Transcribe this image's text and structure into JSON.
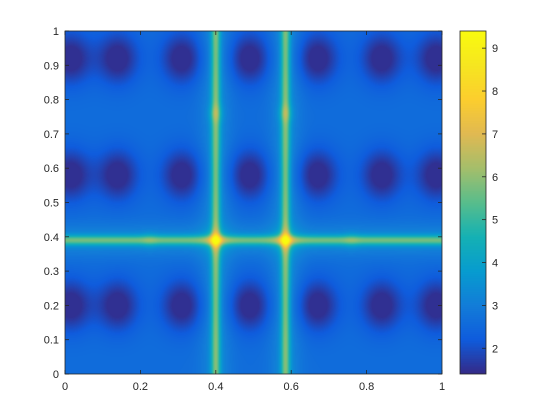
{
  "chart_data": {
    "type": "heatmap",
    "title": "",
    "xlabel": "",
    "ylabel": "",
    "xlim": [
      0,
      1
    ],
    "ylim": [
      0,
      1
    ],
    "grid": false,
    "x_ticks": [
      0,
      0.2,
      0.4,
      0.6,
      0.8,
      1
    ],
    "y_ticks": [
      0,
      0.1,
      0.2,
      0.3,
      0.4,
      0.5,
      0.6,
      0.7,
      0.8,
      0.9,
      1
    ],
    "colorbar": {
      "colormap": "parula",
      "range": [
        1.4,
        9.4
      ],
      "ticks": [
        2,
        3,
        4,
        5,
        6,
        7,
        8,
        9
      ],
      "placement": "right"
    },
    "features": {
      "bright_vertical_lines_x": [
        0.4,
        0.585
      ],
      "bright_horizontal_line_y": 0.39,
      "peak_points": [
        {
          "x": 0.4,
          "y": 0.39,
          "value": 9.3
        },
        {
          "x": 0.585,
          "y": 0.39,
          "value": 9.3
        },
        {
          "x": 0.4,
          "y": 0.76,
          "value": 7.8
        },
        {
          "x": 0.585,
          "y": 0.76,
          "value": 7.8
        },
        {
          "x": 0.225,
          "y": 0.39,
          "value": 7.2
        },
        {
          "x": 0.76,
          "y": 0.39,
          "value": 7.2
        }
      ],
      "dark_minima_x": [
        0.015,
        0.14,
        0.31,
        0.49,
        0.67,
        0.84,
        0.985
      ],
      "dark_minima_y": [
        0.2,
        0.58,
        0.92
      ],
      "min_value": 1.5
    }
  }
}
